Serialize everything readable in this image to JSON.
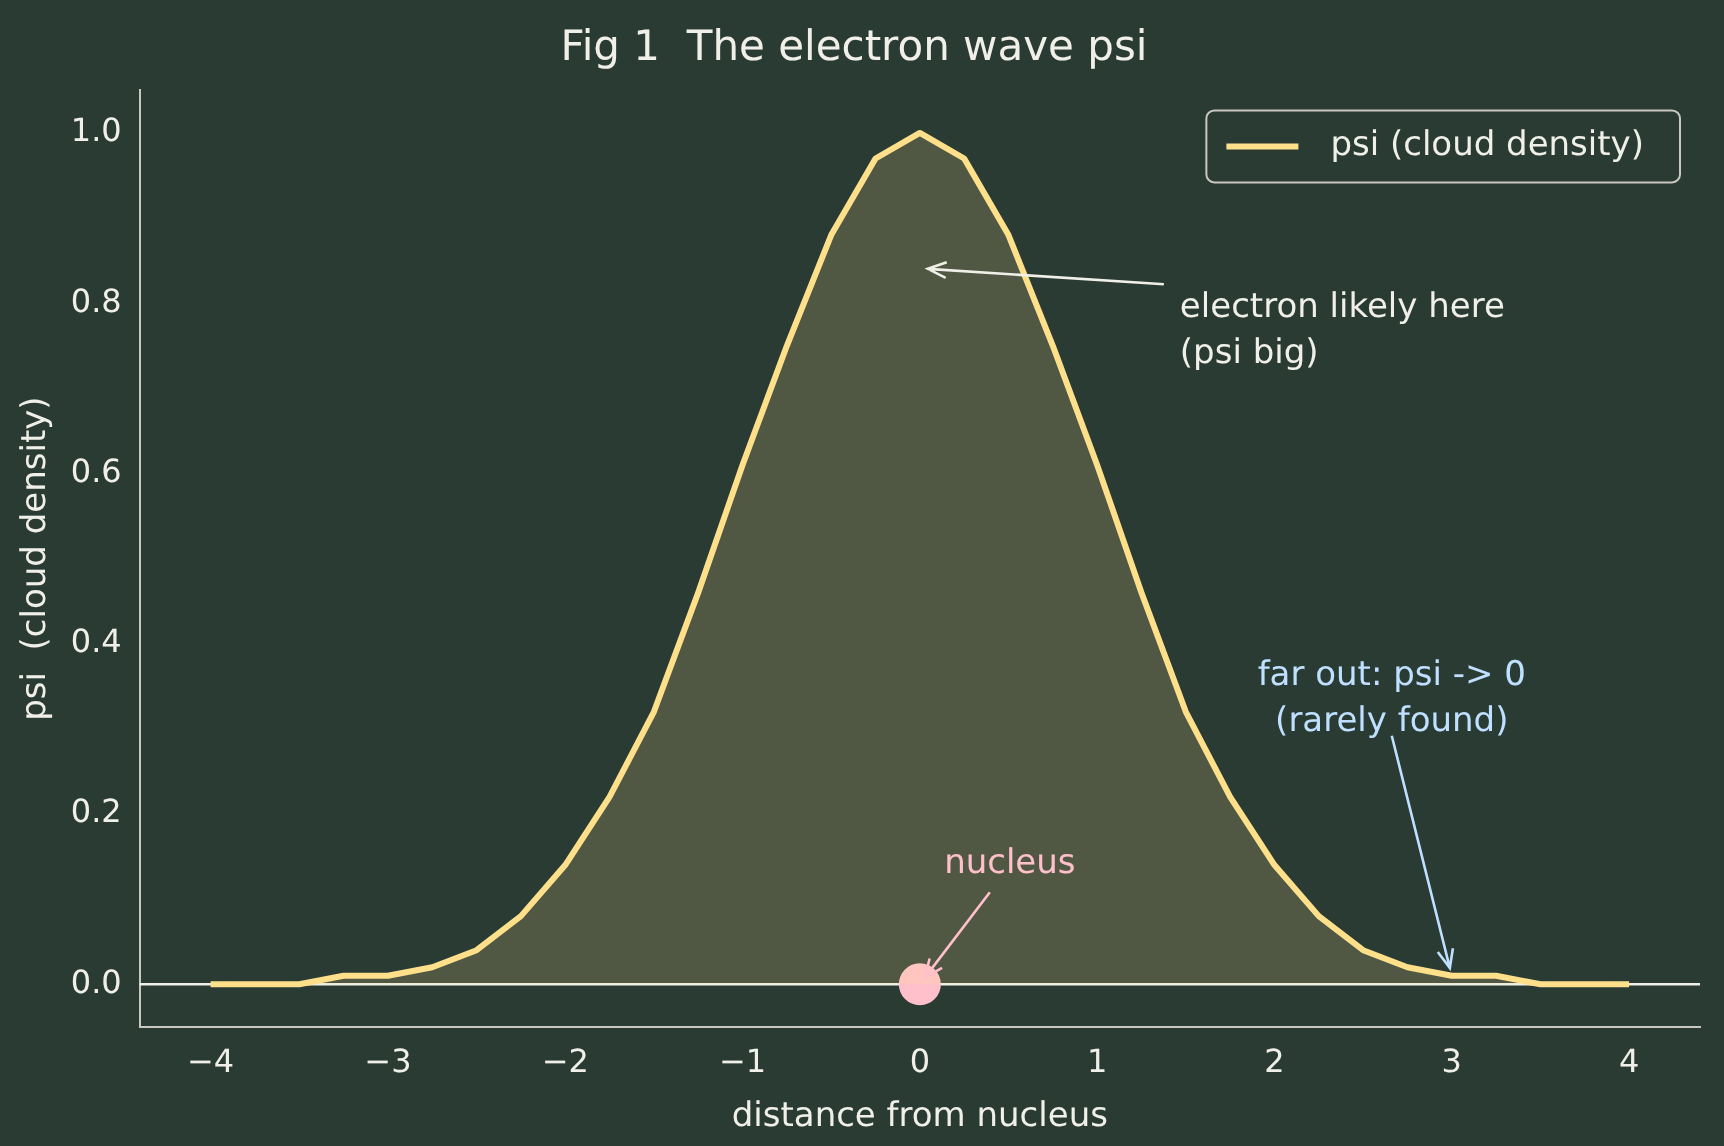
{
  "chart_data": {
    "type": "area",
    "title": "Fig 1  The electron wave psi",
    "xlabel": "distance from nucleus",
    "ylabel": "psi  (cloud density)",
    "x": [
      -4,
      -3.75,
      -3.5,
      -3.25,
      -3,
      -2.75,
      -2.5,
      -2.25,
      -2,
      -1.75,
      -1.5,
      -1.25,
      -1,
      -0.75,
      -0.5,
      -0.25,
      0,
      0.25,
      0.5,
      0.75,
      1,
      1.25,
      1.5,
      1.75,
      2,
      2.25,
      2.5,
      2.75,
      3,
      3.25,
      3.5,
      3.75,
      4
    ],
    "series": [
      {
        "name": "psi (cloud density)",
        "color": "#ffe08a",
        "marker": "none",
        "values": [
          0,
          0,
          0,
          0.01,
          0.01,
          0.02,
          0.04,
          0.08,
          0.14,
          0.22,
          0.32,
          0.46,
          0.61,
          0.75,
          0.88,
          0.97,
          1,
          0.97,
          0.88,
          0.75,
          0.61,
          0.46,
          0.32,
          0.22,
          0.14,
          0.08,
          0.04,
          0.02,
          0.01,
          0.01,
          0,
          0,
          0
        ]
      },
      {
        "type": "scatter",
        "color": "#ffc0cb",
        "marker": "circle",
        "x": [
          0
        ],
        "values": [
          0
        ]
      }
    ],
    "annotations": [
      "electron likely here\n(psi big)",
      {
        "text": "nucleus",
        "x": 0,
        "y": 0
      },
      {
        "text": "far out: psi -> 0\n(rarely found)",
        "x": 3,
        "y": 0.01
      }
    ],
    "ref_lines": [
      {
        "axis": "y",
        "value": 0,
        "color": "#f0f0e8"
      }
    ],
    "xlim": [
      -4.4,
      4.4
    ],
    "ylim": [
      -0.05,
      1.05
    ],
    "xticks": [
      {
        "value": -4,
        "label": "−4"
      },
      {
        "value": -3,
        "label": "−3"
      },
      {
        "value": -2,
        "label": "−2"
      },
      {
        "value": -1,
        "label": "−1"
      },
      0,
      1,
      2,
      3,
      4
    ],
    "yticks": [
      {
        "value": 0,
        "label": "0.0"
      },
      {
        "value": 0.2,
        "label": "0.2"
      },
      {
        "value": 0.4,
        "label": "0.4"
      },
      {
        "value": 0.6,
        "label": "0.6"
      },
      {
        "value": 0.8,
        "label": "0.8"
      },
      {
        "value": 1,
        "label": "1.0"
      }
    ],
    "grid": false,
    "legend": "top right",
    "line_style": "solid"
  }
}
